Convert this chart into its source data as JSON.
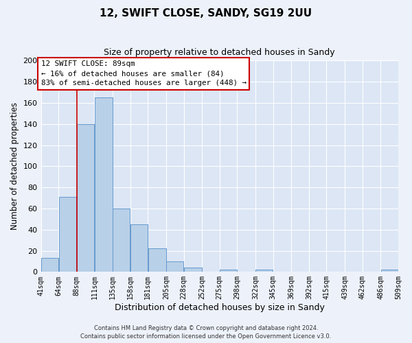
{
  "title_line1": "12, SWIFT CLOSE, SANDY, SG19 2UU",
  "title_line2": "Size of property relative to detached houses in Sandy",
  "xlabel": "Distribution of detached houses by size in Sandy",
  "ylabel": "Number of detached properties",
  "bin_labels": [
    "41sqm",
    "64sqm",
    "88sqm",
    "111sqm",
    "135sqm",
    "158sqm",
    "181sqm",
    "205sqm",
    "228sqm",
    "252sqm",
    "275sqm",
    "298sqm",
    "322sqm",
    "345sqm",
    "369sqm",
    "392sqm",
    "415sqm",
    "439sqm",
    "462sqm",
    "486sqm",
    "509sqm"
  ],
  "bar_heights": [
    13,
    71,
    140,
    165,
    60,
    45,
    22,
    10,
    4,
    0,
    2,
    0,
    2,
    0,
    0,
    0,
    0,
    0,
    0,
    2,
    0
  ],
  "bar_color": "#b8d0e8",
  "bar_edge_color": "#6699cc",
  "vline_x": 88,
  "vline_color": "#cc0000",
  "ylim": [
    0,
    200
  ],
  "yticks": [
    0,
    20,
    40,
    60,
    80,
    100,
    120,
    140,
    160,
    180,
    200
  ],
  "annotation_title": "12 SWIFT CLOSE: 89sqm",
  "annotation_line1": "← 16% of detached houses are smaller (84)",
  "annotation_line2": "83% of semi-detached houses are larger (448) →",
  "annotation_box_color": "#ffffff",
  "annotation_box_edge": "#cc0000",
  "footer_line1": "Contains HM Land Registry data © Crown copyright and database right 2024.",
  "footer_line2": "Contains public sector information licensed under the Open Government Licence v3.0.",
  "bg_color": "#edf2fa",
  "plot_bg_color": "#dce6f5",
  "grid_color": "#ffffff",
  "bin_edges": [
    41,
    64,
    88,
    111,
    135,
    158,
    181,
    205,
    228,
    252,
    275,
    298,
    322,
    345,
    369,
    392,
    415,
    439,
    462,
    486,
    509
  ]
}
